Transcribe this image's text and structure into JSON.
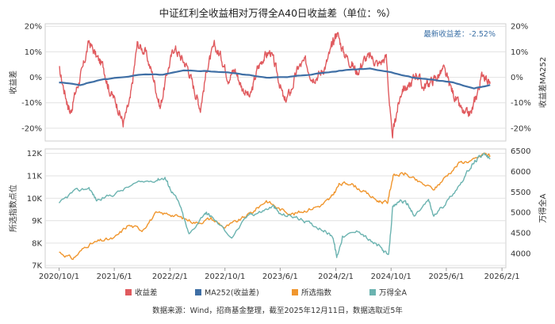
{
  "chart_data": [
    {
      "type": "line",
      "title": "中证红利全收益相对万得全A40日收益差（单位：%）",
      "ylabel_left": "收益差",
      "ylabel_right": "收益差MA252",
      "y_left_ticks": [
        "20%",
        "10%",
        "0%",
        "-10%",
        "-20%"
      ],
      "y_right_ticks": [
        "20%",
        "10%",
        "0%",
        "-10%",
        "-20%"
      ],
      "ylim": [
        -25,
        21
      ],
      "annotation": "最新收益差：-2.52%",
      "grid": true,
      "series": [
        {
          "name": "收益差",
          "color": "#e05a5e",
          "points": [
            [
              "2020-10-01",
              3
            ],
            [
              "2020-11-01",
              -8
            ],
            [
              "2020-11-20",
              -14
            ],
            [
              "2020-12-15",
              -5
            ],
            [
              "2021-01-10",
              2
            ],
            [
              "2021-02-10",
              14
            ],
            [
              "2021-03-15",
              8
            ],
            [
              "2021-04-15",
              4
            ],
            [
              "2021-05-10",
              -5
            ],
            [
              "2021-06-10",
              -10
            ],
            [
              "2021-07-10",
              -18
            ],
            [
              "2021-08-10",
              -9
            ],
            [
              "2021-09-10",
              13
            ],
            [
              "2021-10-15",
              10
            ],
            [
              "2021-11-20",
              0
            ],
            [
              "2021-12-20",
              -12
            ],
            [
              "2022-01-20",
              2
            ],
            [
              "2022-02-20",
              12
            ],
            [
              "2022-03-20",
              8
            ],
            [
              "2022-04-20",
              4
            ],
            [
              "2022-05-20",
              -5
            ],
            [
              "2022-06-15",
              -12
            ],
            [
              "2022-07-15",
              4
            ],
            [
              "2022-08-15",
              12
            ],
            [
              "2022-09-15",
              8
            ],
            [
              "2022-10-15",
              0
            ],
            [
              "2022-11-15",
              3
            ],
            [
              "2022-12-15",
              -4
            ],
            [
              "2023-01-20",
              -8
            ],
            [
              "2023-02-20",
              3
            ],
            [
              "2023-03-20",
              8
            ],
            [
              "2023-04-20",
              10
            ],
            [
              "2023-05-20",
              1
            ],
            [
              "2023-06-20",
              -10
            ],
            [
              "2023-07-20",
              -5
            ],
            [
              "2023-08-20",
              4
            ],
            [
              "2023-09-20",
              6
            ],
            [
              "2023-10-20",
              0
            ],
            [
              "2023-11-20",
              1
            ],
            [
              "2023-12-20",
              5
            ],
            [
              "2024-01-15",
              12
            ],
            [
              "2024-02-05",
              18
            ],
            [
              "2024-03-05",
              10
            ],
            [
              "2024-04-05",
              6
            ],
            [
              "2024-05-05",
              2
            ],
            [
              "2024-06-05",
              7
            ],
            [
              "2024-07-05",
              8
            ],
            [
              "2024-08-05",
              5
            ],
            [
              "2024-09-10",
              8
            ],
            [
              "2024-10-05",
              -24
            ],
            [
              "2024-10-25",
              -14
            ],
            [
              "2024-11-20",
              -4
            ],
            [
              "2024-12-20",
              -4
            ],
            [
              "2025-01-20",
              2
            ],
            [
              "2025-02-20",
              -4
            ],
            [
              "2025-03-20",
              -2
            ],
            [
              "2025-04-20",
              0
            ],
            [
              "2025-05-20",
              3
            ],
            [
              "2025-06-20",
              -4
            ],
            [
              "2025-07-20",
              -10
            ],
            [
              "2025-08-20",
              -15
            ],
            [
              "2025-09-20",
              -14
            ],
            [
              "2025-10-15",
              -6
            ],
            [
              "2025-11-10",
              2
            ],
            [
              "2025-12-11",
              -2.52
            ]
          ]
        },
        {
          "name": "MA252(收益差)",
          "color": "#3f6fa5",
          "points": [
            [
              "2020-10-01",
              -2
            ],
            [
              "2021-01-01",
              -3
            ],
            [
              "2021-04-01",
              -1
            ],
            [
              "2021-07-01",
              0
            ],
            [
              "2021-10-01",
              1
            ],
            [
              "2022-01-01",
              1
            ],
            [
              "2022-04-01",
              2.5
            ],
            [
              "2022-07-01",
              2.5
            ],
            [
              "2022-10-01",
              2
            ],
            [
              "2023-01-01",
              1
            ],
            [
              "2023-04-01",
              0
            ],
            [
              "2023-07-01",
              0
            ],
            [
              "2023-10-01",
              1
            ],
            [
              "2024-01-01",
              2
            ],
            [
              "2024-04-01",
              3
            ],
            [
              "2024-07-01",
              3.5
            ],
            [
              "2024-10-01",
              2
            ],
            [
              "2025-01-01",
              0
            ],
            [
              "2025-04-01",
              -1
            ],
            [
              "2025-07-01",
              -2
            ],
            [
              "2025-10-01",
              -4.5
            ],
            [
              "2025-12-11",
              -3
            ]
          ]
        }
      ]
    },
    {
      "type": "line",
      "ylabel_left": "所选指数点位",
      "ylabel_right": "万得全A",
      "y_left_ticks": [
        "12K",
        "11K",
        "10K",
        "9K",
        "8K",
        "7K"
      ],
      "y_right_ticks": [
        "6500",
        "6000",
        "5500",
        "5000",
        "4500",
        "4000"
      ],
      "ylim_left": [
        6900,
        12200
      ],
      "ylim_right": [
        3650,
        6550
      ],
      "x_ticks": [
        "2020/10/1",
        "2021/6/1",
        "2022/2/1",
        "2022/10/1",
        "2023/6/1",
        "2024/2/1",
        "2024/10/1",
        "2025/6/1",
        "2026/2/1"
      ],
      "grid": true,
      "series": [
        {
          "name": "所选指数",
          "axis": "left",
          "color": "#f0962e",
          "points": [
            [
              "2020-10-01",
              7600
            ],
            [
              "2020-12-01",
              7300
            ],
            [
              "2021-02-01",
              7900
            ],
            [
              "2021-04-01",
              8100
            ],
            [
              "2021-06-01",
              8200
            ],
            [
              "2021-08-01",
              8800
            ],
            [
              "2021-10-01",
              8600
            ],
            [
              "2021-12-01",
              9300
            ],
            [
              "2022-02-01",
              9300
            ],
            [
              "2022-04-01",
              9100
            ],
            [
              "2022-06-01",
              8900
            ],
            [
              "2022-08-01",
              9100
            ],
            [
              "2022-10-01",
              8700
            ],
            [
              "2022-12-01",
              9000
            ],
            [
              "2023-02-01",
              9400
            ],
            [
              "2023-04-01",
              9900
            ],
            [
              "2023-06-01",
              9500
            ],
            [
              "2023-08-01",
              9300
            ],
            [
              "2023-10-01",
              9500
            ],
            [
              "2023-12-01",
              9700
            ],
            [
              "2024-01-10",
              10000
            ],
            [
              "2024-02-15",
              10600
            ],
            [
              "2024-04-01",
              10700
            ],
            [
              "2024-06-01",
              10300
            ],
            [
              "2024-08-01",
              9900
            ],
            [
              "2024-09-15",
              9800
            ],
            [
              "2024-10-10",
              11000
            ],
            [
              "2024-12-01",
              11100
            ],
            [
              "2025-02-01",
              10700
            ],
            [
              "2025-04-10",
              10400
            ],
            [
              "2025-06-01",
              11000
            ],
            [
              "2025-08-01",
              11600
            ],
            [
              "2025-10-01",
              11700
            ],
            [
              "2025-11-15",
              12000
            ],
            [
              "2025-12-11",
              11900
            ]
          ]
        },
        {
          "name": "万得全A",
          "axis": "right",
          "color": "#6bb3b0",
          "points": [
            [
              "2020-10-01",
              5200
            ],
            [
              "2020-12-01",
              5500
            ],
            [
              "2021-02-10",
              5600
            ],
            [
              "2021-03-15",
              5300
            ],
            [
              "2021-06-01",
              5450
            ],
            [
              "2021-09-01",
              5700
            ],
            [
              "2021-12-01",
              5800
            ],
            [
              "2022-01-10",
              5850
            ],
            [
              "2022-02-01",
              5600
            ],
            [
              "2022-03-15",
              5200
            ],
            [
              "2022-04-26",
              4450
            ],
            [
              "2022-07-05",
              5000
            ],
            [
              "2022-08-01",
              4900
            ],
            [
              "2022-10-31",
              4400
            ],
            [
              "2023-01-15",
              4950
            ],
            [
              "2023-03-01",
              5000
            ],
            [
              "2023-05-01",
              5150
            ],
            [
              "2023-06-01",
              4950
            ],
            [
              "2023-08-01",
              4900
            ],
            [
              "2023-10-01",
              4750
            ],
            [
              "2023-12-01",
              4600
            ],
            [
              "2024-01-20",
              4400
            ],
            [
              "2024-02-05",
              3900
            ],
            [
              "2024-03-01",
              4400
            ],
            [
              "2024-05-15",
              4550
            ],
            [
              "2024-07-01",
              4300
            ],
            [
              "2024-08-15",
              4150
            ],
            [
              "2024-09-20",
              3930
            ],
            [
              "2024-10-08",
              5100
            ],
            [
              "2024-11-10",
              5300
            ],
            [
              "2024-12-15",
              5200
            ],
            [
              "2025-01-10",
              4900
            ],
            [
              "2025-03-15",
              5300
            ],
            [
              "2025-04-07",
              4900
            ],
            [
              "2025-06-01",
              5250
            ],
            [
              "2025-08-01",
              5700
            ],
            [
              "2025-09-15",
              6100
            ],
            [
              "2025-10-15",
              6300
            ],
            [
              "2025-11-10",
              6450
            ],
            [
              "2025-12-11",
              6300
            ]
          ]
        }
      ]
    }
  ],
  "legend": [
    {
      "label": "收益差",
      "color": "#e05a5e"
    },
    {
      "label": "MA252(收益差)",
      "color": "#3f6fa5"
    },
    {
      "label": "所选指数",
      "color": "#f0962e"
    },
    {
      "label": "万得全A",
      "color": "#6bb3b0"
    }
  ],
  "source": "数据来源：Wind，招商基金整理，截至2025年12月11日，数据选取近5年"
}
